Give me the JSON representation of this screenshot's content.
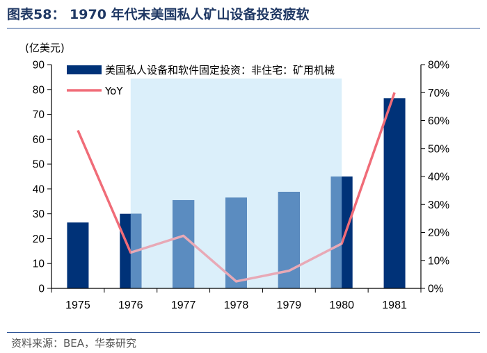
{
  "header": {
    "title": "图表58： 1970 年代末美国私人矿山设备投资疲软"
  },
  "footer": {
    "source": "资料来源：BEA，华泰研究"
  },
  "colors": {
    "bar": "#003278",
    "bar_in_period": "#5b8cc0",
    "highlight": "#dbeffa",
    "line": "#f06c78",
    "line_in_period": "#e8a9b6",
    "title": "#1f3864",
    "rule": "#2f5597"
  },
  "chart_data": {
    "type": "bar",
    "categories": [
      "1975",
      "1976",
      "1977",
      "1978",
      "1979",
      "1980",
      "1981"
    ],
    "series": [
      {
        "name": "美国私人设备和软件固定投资：非住宅：矿用机械",
        "type": "bar",
        "axis": "left",
        "values": [
          26.5,
          30,
          35.5,
          36.5,
          38.8,
          45,
          76.5
        ]
      },
      {
        "name": "YoY",
        "type": "line",
        "axis": "right",
        "values": [
          56.5,
          12.8,
          18.8,
          2.5,
          6.3,
          16.0,
          70.0
        ]
      }
    ],
    "left_axis": {
      "label": "(亿美元)",
      "min": 0,
      "max": 90,
      "ticks": [
        0,
        10,
        20,
        30,
        40,
        50,
        60,
        70,
        80,
        90
      ]
    },
    "right_axis": {
      "min": 0,
      "max": 80,
      "ticks": [
        "0%",
        "10%",
        "20%",
        "30%",
        "40%",
        "50%",
        "60%",
        "70%",
        "80%"
      ]
    },
    "highlight_period": {
      "from": "1976",
      "to": "1980"
    },
    "grid": false,
    "legend": "top-left"
  }
}
